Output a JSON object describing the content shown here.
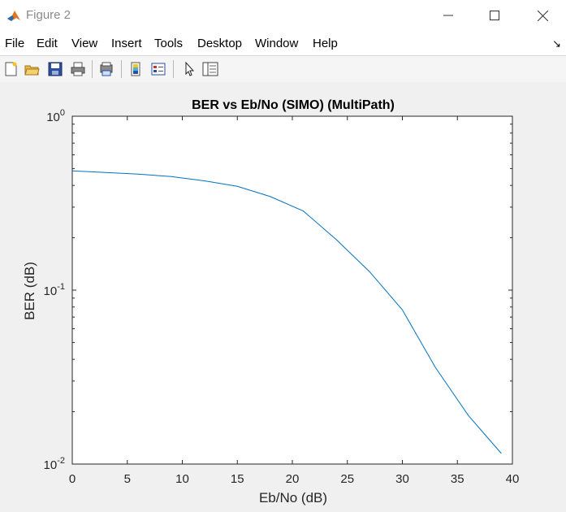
{
  "window": {
    "title": "Figure 2"
  },
  "menu": [
    "File",
    "Edit",
    "View",
    "Insert",
    "Tools",
    "Desktop",
    "Window",
    "Help"
  ],
  "toolbar": [
    "new-figure-icon",
    "open-file-icon",
    "save-icon",
    "print-icon",
    "print-preview-icon",
    "colorbar-icon",
    "legend-icon",
    "pointer-icon",
    "property-inspector-icon"
  ],
  "colors": {
    "line": "#0072bd",
    "window_bg": "#f0f0f0",
    "axes_bg": "#ffffff"
  },
  "chart_data": {
    "type": "line",
    "title": "BER vs Eb/No (SIMO) (MultiPath)",
    "xlabel": "Eb/No (dB)",
    "ylabel": "BER (dB)",
    "xlim": [
      0,
      40
    ],
    "ylim": [
      0.01,
      1
    ],
    "yscale": "log",
    "xticks": [
      "0",
      "5",
      "10",
      "15",
      "20",
      "25",
      "30",
      "35",
      "40"
    ],
    "yticks": [
      {
        "base": "10",
        "exp": "0"
      },
      {
        "base": "10",
        "exp": "-1"
      },
      {
        "base": "10",
        "exp": "-2"
      }
    ],
    "grid": false,
    "series": [
      {
        "x": [
          0,
          3,
          6,
          9,
          12,
          15,
          18,
          21,
          24,
          27,
          30,
          33,
          36,
          39
        ],
        "values": [
          0.485,
          0.475,
          0.465,
          0.45,
          0.425,
          0.395,
          0.345,
          0.285,
          0.195,
          0.128,
          0.077,
          0.036,
          0.019,
          0.0115
        ]
      }
    ]
  }
}
